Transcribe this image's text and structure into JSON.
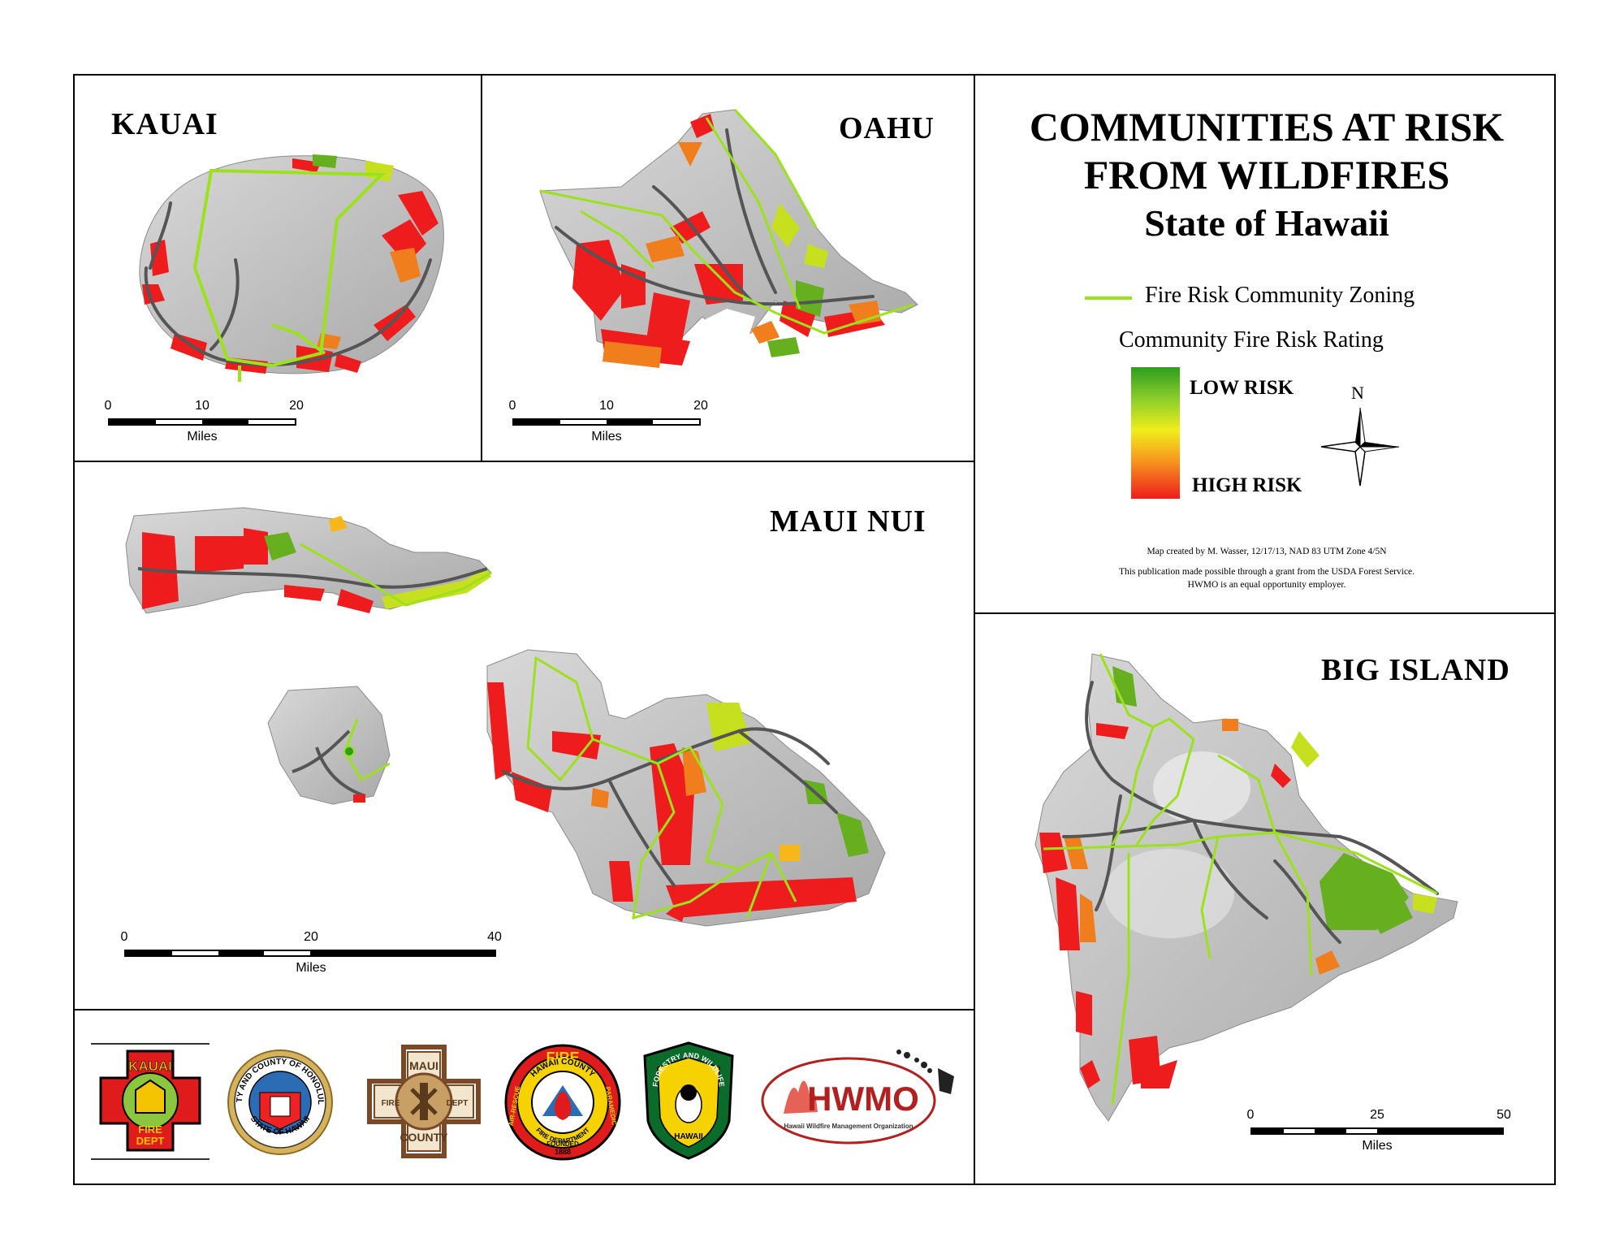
{
  "title": {
    "line1": "COMMUNITIES AT RISK",
    "line2": "FROM WILDFIRES",
    "line3": "State of Hawaii"
  },
  "panels": {
    "kauai": {
      "label": "KAUAI",
      "scale": {
        "ticks": [
          "0",
          "10",
          "20"
        ],
        "unit": "Miles"
      }
    },
    "oahu": {
      "label": "OAHU",
      "scale": {
        "ticks": [
          "0",
          "10",
          "20"
        ],
        "unit": "Miles"
      }
    },
    "maui_nui": {
      "label": "MAUI NUI",
      "scale": {
        "ticks": [
          "0",
          "20",
          "40"
        ],
        "unit": "Miles"
      }
    },
    "big_island": {
      "label": "BIG ISLAND",
      "scale": {
        "ticks": [
          "0",
          "25",
          "50"
        ],
        "unit": "Miles"
      }
    }
  },
  "legend": {
    "zoning_label": "Fire Risk Community Zoning",
    "rating_label": "Community Fire Risk Rating",
    "low_label": "LOW RISK",
    "high_label": "HIGH RISK",
    "zoning_color": "#9be21d",
    "low_color": "#2e9e1f",
    "high_color": "#ee1c1c"
  },
  "north_arrow": {
    "label": "N"
  },
  "credits": {
    "line1": "Map created by M. Wasser, 12/17/13, NAD 83 UTM Zone 4/5N",
    "line2": "This publication made possible through a grant from the USDA Forest Service.",
    "line3": "HWMO is an equal opportunity employer."
  },
  "logos": {
    "kauai_fire": {
      "top": "KAUAI",
      "bottom1": "FIRE",
      "bottom2": "DEPT"
    },
    "honolulu": {
      "top": "CITY AND COUNTY OF HONOLULU",
      "bottom": "STATE OF HAWAII"
    },
    "maui_fire": {
      "top": "MAUI",
      "bottom": "COUNTY",
      "left": "FIRE",
      "right": "DEPT"
    },
    "hawaii_county": {
      "top": "FIRE",
      "ring": "HAWAII COUNTY",
      "left": "AIR-RESCUE",
      "right": "PARAMEDIC",
      "bottom1": "FIRE DEPARTMENT",
      "bottom2": "FOUNDED",
      "bottom3": "1888"
    },
    "forestry": {
      "top": "FORESTRY AND WILDLIFE",
      "bottom": "HAWAII"
    },
    "hwmo": {
      "acronym": "HWMO",
      "name": "Hawaii Wildfire Management Organization"
    }
  }
}
